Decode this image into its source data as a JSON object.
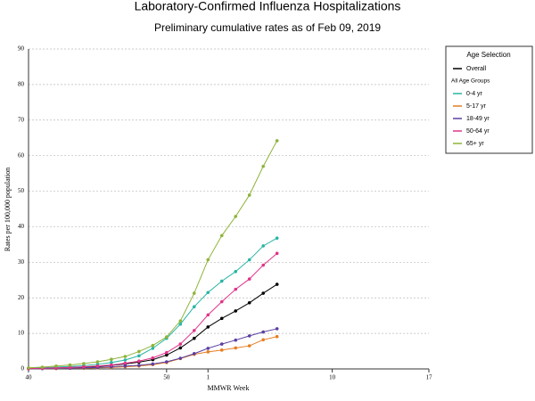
{
  "chart_data": {
    "type": "line",
    "title": "Laboratory-Confirmed Influenza Hospitalizations",
    "subtitle": "Preliminary cumulative rates as of Feb 09, 2019",
    "y_label": "Rates per 100,000 population",
    "x_label": "MMWR Week",
    "legend_title": "Age Selection",
    "legend_subheading": "All Age Groups",
    "categories": [
      "40",
      null,
      null,
      null,
      null,
      null,
      null,
      null,
      null,
      null,
      "50",
      null,
      null,
      "1",
      null,
      null,
      null,
      null,
      null,
      null,
      null,
      null,
      "10",
      null,
      null,
      null,
      null,
      null,
      null,
      "17"
    ],
    "ylim": [
      0,
      90
    ],
    "yticks": [
      0,
      10,
      20,
      30,
      40,
      50,
      60,
      70,
      80,
      90
    ],
    "grid": true,
    "series": [
      {
        "name": "Overall",
        "color": "#000000",
        "values": [
          0.1,
          0.2,
          0.3,
          0.4,
          0.5,
          0.7,
          1.0,
          1.4,
          1.9,
          2.6,
          3.9,
          5.9,
          8.6,
          11.8,
          14.2,
          16.3,
          18.6,
          21.3,
          23.8,
          null,
          null,
          null,
          null,
          null,
          null,
          null,
          null,
          null,
          null,
          null
        ]
      },
      {
        "name": "0-4 yr",
        "color": "#2ab5a5",
        "values": [
          0.2,
          0.3,
          0.5,
          0.7,
          0.9,
          1.3,
          1.8,
          2.5,
          3.7,
          5.8,
          8.6,
          12.6,
          17.5,
          21.5,
          24.7,
          27.4,
          30.7,
          34.6,
          36.8,
          null,
          null,
          null,
          null,
          null,
          null,
          null,
          null,
          null,
          null,
          null
        ]
      },
      {
        "name": "5-17 yr",
        "color": "#e67e22",
        "values": [
          0.1,
          0.1,
          0.1,
          0.2,
          0.2,
          0.3,
          0.4,
          0.6,
          0.8,
          1.2,
          1.8,
          2.9,
          4.1,
          4.8,
          5.3,
          5.9,
          6.5,
          8.2,
          9.1,
          null,
          null,
          null,
          null,
          null,
          null,
          null,
          null,
          null,
          null,
          null
        ]
      },
      {
        "name": "18-49 yr",
        "color": "#5b3fa0",
        "values": [
          0.1,
          0.1,
          0.2,
          0.2,
          0.3,
          0.4,
          0.6,
          0.8,
          1.0,
          1.4,
          2.0,
          3.0,
          4.3,
          5.8,
          7.0,
          8.1,
          9.3,
          10.4,
          11.3,
          null,
          null,
          null,
          null,
          null,
          null,
          null,
          null,
          null,
          null,
          null
        ]
      },
      {
        "name": "50-64 yr",
        "color": "#e0348a",
        "values": [
          0.1,
          0.2,
          0.3,
          0.4,
          0.6,
          0.8,
          1.1,
          1.6,
          2.2,
          3.1,
          4.6,
          7.0,
          10.8,
          15.2,
          18.9,
          22.4,
          25.3,
          29.2,
          32.5,
          null,
          null,
          null,
          null,
          null,
          null,
          null,
          null,
          null,
          null,
          null
        ]
      },
      {
        "name": "65+ yr",
        "color": "#8db33a",
        "values": [
          0.3,
          0.5,
          0.8,
          1.1,
          1.5,
          2.0,
          2.7,
          3.5,
          4.9,
          6.6,
          9.0,
          13.5,
          21.3,
          30.7,
          37.5,
          42.9,
          48.9,
          57.0,
          64.2,
          null,
          null,
          null,
          null,
          null,
          null,
          null,
          null,
          null,
          null,
          null
        ]
      }
    ]
  }
}
